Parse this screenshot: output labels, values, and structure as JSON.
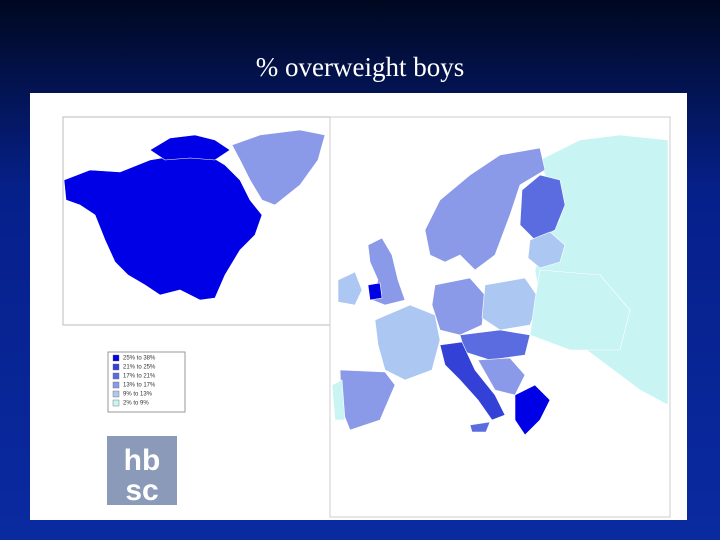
{
  "header": {
    "title": "% overweight boys"
  },
  "legend": {
    "items": [
      {
        "label": "25% to 38%",
        "color": "#0000e6"
      },
      {
        "label": "21% to 25%",
        "color": "#3441d6"
      },
      {
        "label": "17% to 21%",
        "color": "#5a6ce0"
      },
      {
        "label": "13% to 17%",
        "color": "#8a9ae8"
      },
      {
        "label": "9% to 13%",
        "color": "#acc8f2"
      },
      {
        "label": "2% to 9%",
        "color": "#c8f4f4"
      }
    ]
  },
  "logo": {
    "lines": [
      "hb",
      "sc"
    ]
  }
}
